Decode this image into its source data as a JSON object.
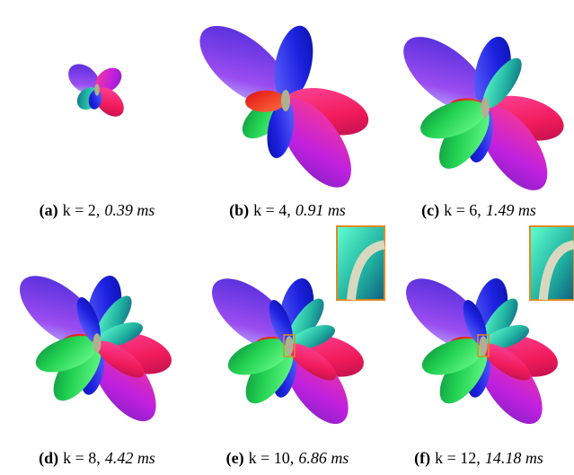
{
  "figures": [
    {
      "label": "(a)",
      "k": "k = 2,",
      "time": "0.39 ms"
    },
    {
      "label": "(b)",
      "k": "k = 4,",
      "time": "0.91 ms"
    },
    {
      "label": "(c)",
      "k": "k = 6,",
      "time": "1.49 ms"
    },
    {
      "label": "(d)",
      "k": "k = 8,",
      "time": "4.42 ms"
    },
    {
      "label": "(e)",
      "k": "k = 10,",
      "time": "6.86 ms"
    },
    {
      "label": "(f)",
      "k": "k = 12,",
      "time": "14.18 ms"
    }
  ]
}
